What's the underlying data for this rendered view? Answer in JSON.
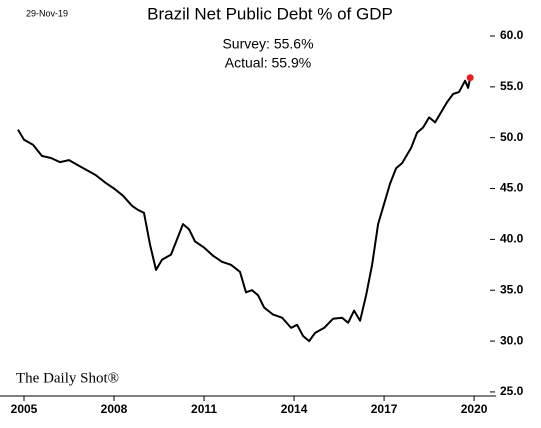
{
  "chart_data": {
    "type": "line",
    "date_label": "29-Nov-19",
    "title": "Brazil Net Public Debt % of GDP",
    "annotations": [
      "Survey: 55.6%",
      "Actual:  55.9%"
    ],
    "source": "The Daily Shot®",
    "x": [
      2004.8,
      2005.0,
      2005.3,
      2005.6,
      2005.9,
      2006.2,
      2006.5,
      2006.8,
      2007.1,
      2007.4,
      2007.7,
      2008.0,
      2008.3,
      2008.6,
      2008.8,
      2009.0,
      2009.2,
      2009.4,
      2009.6,
      2009.9,
      2010.1,
      2010.3,
      2010.5,
      2010.7,
      2011.0,
      2011.3,
      2011.6,
      2011.9,
      2012.2,
      2012.4,
      2012.6,
      2012.8,
      2013.0,
      2013.3,
      2013.6,
      2013.9,
      2014.1,
      2014.3,
      2014.5,
      2014.7,
      2015.0,
      2015.3,
      2015.6,
      2015.8,
      2016.0,
      2016.2,
      2016.4,
      2016.6,
      2016.8,
      2017.0,
      2017.2,
      2017.4,
      2017.6,
      2017.9,
      2018.1,
      2018.3,
      2018.5,
      2018.7,
      2018.9,
      2019.1,
      2019.3,
      2019.5,
      2019.7,
      2019.8,
      2019.87
    ],
    "series": [
      {
        "name": "Brazil Net Public Debt % of GDP",
        "color": "#000000",
        "values": [
          50.8,
          49.8,
          49.3,
          48.2,
          48.0,
          47.6,
          47.8,
          47.3,
          46.8,
          46.3,
          45.6,
          45.0,
          44.3,
          43.3,
          42.9,
          42.6,
          39.5,
          37.0,
          38.0,
          38.5,
          40.0,
          41.5,
          41.0,
          39.8,
          39.2,
          38.4,
          37.8,
          37.5,
          36.8,
          34.8,
          35.0,
          34.5,
          33.3,
          32.6,
          32.3,
          31.3,
          31.6,
          30.5,
          30.0,
          30.8,
          31.3,
          32.2,
          32.3,
          31.8,
          33.0,
          32.0,
          34.5,
          37.5,
          41.5,
          43.5,
          45.5,
          47.0,
          47.5,
          49.0,
          50.5,
          51.0,
          52.0,
          51.5,
          52.5,
          53.5,
          54.3,
          54.5,
          55.6,
          54.9,
          55.9
        ]
      }
    ],
    "highlight_color": "#e02020",
    "xlim": [
      2004.7,
      2020.53
    ],
    "xticks": [
      2005,
      2008,
      2011,
      2014,
      2017,
      2020
    ],
    "ylim": [
      24.6,
      60.0
    ],
    "yticks": [
      {
        "value": 25,
        "label": "25.0"
      },
      {
        "value": 30,
        "label": "30.0"
      },
      {
        "value": 35,
        "label": "35.0"
      },
      {
        "value": 40,
        "label": "40.0"
      },
      {
        "value": 45,
        "label": "45.0"
      },
      {
        "value": 50,
        "label": "50.0"
      },
      {
        "value": 55,
        "label": "55.0"
      },
      {
        "value": 60,
        "label": "60.0"
      }
    ],
    "grid": false
  }
}
